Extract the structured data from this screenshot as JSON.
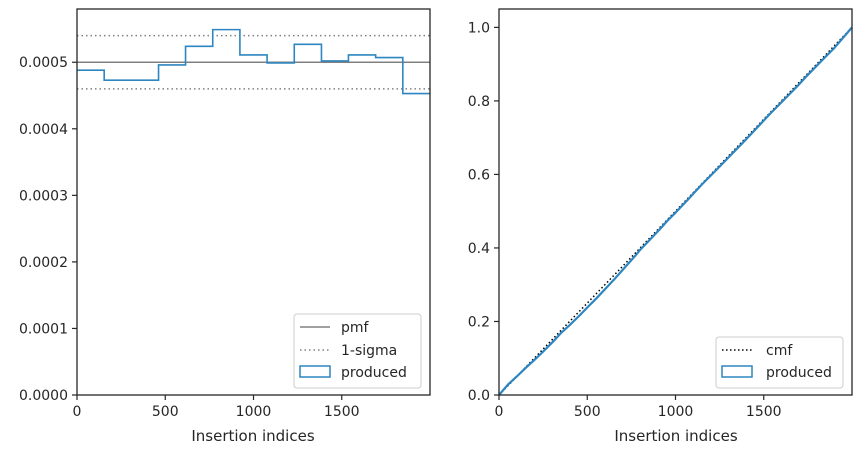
{
  "chart_data": [
    {
      "type": "histogram-step",
      "xlabel": "Insertion indices",
      "ylabel": "",
      "xlim": [
        0,
        2000
      ],
      "ylim": [
        0,
        0.00058
      ],
      "x_ticks": [
        0,
        500,
        1000,
        1500
      ],
      "y_ticks": [
        0.0,
        0.0001,
        0.0002,
        0.0003,
        0.0004,
        0.0005
      ],
      "y_tick_labels": [
        "0.0000",
        "0.0001",
        "0.0002",
        "0.0003",
        "0.0004",
        "0.0005"
      ],
      "pmf": 0.0005,
      "sigma_band": [
        0.00046,
        0.00054
      ],
      "bin_edges": [
        0,
        154,
        308,
        462,
        615,
        769,
        923,
        1077,
        1231,
        1385,
        1538,
        1692,
        1846,
        2000
      ],
      "produced": [
        0.000488,
        0.000473,
        0.000473,
        0.000496,
        0.000524,
        0.000549,
        0.000511,
        0.000499,
        0.000527,
        0.000502,
        0.000511,
        0.000507,
        0.000453
      ],
      "legend": [
        "pmf",
        "1-sigma",
        "produced"
      ],
      "legend_position": "lower-right",
      "colors": {
        "pmf": "#808080",
        "sigma": "#808080",
        "produced": "#2e86c1"
      }
    },
    {
      "type": "line",
      "xlabel": "Insertion indices",
      "ylabel": "",
      "xlim": [
        0,
        2000
      ],
      "ylim": [
        0,
        1.05
      ],
      "x_ticks": [
        0,
        500,
        1000,
        1500
      ],
      "y_ticks": [
        0.0,
        0.2,
        0.4,
        0.6,
        0.8,
        1.0
      ],
      "y_tick_labels": [
        "0.0",
        "0.2",
        "0.4",
        "0.6",
        "0.8",
        "1.0"
      ],
      "cmf": {
        "x": [
          0,
          2000
        ],
        "y": [
          0,
          1.0
        ]
      },
      "produced": {
        "x": [
          0,
          50,
          100,
          154,
          200,
          250,
          308,
          350,
          400,
          462,
          500,
          550,
          615,
          650,
          700,
          769,
          800,
          850,
          923,
          950,
          1000,
          1077,
          1100,
          1150,
          1231,
          1300,
          1385,
          1450,
          1538,
          1600,
          1692,
          1750,
          1846,
          1900,
          2000
        ],
        "y": [
          0,
          0.028,
          0.05,
          0.075,
          0.095,
          0.118,
          0.146,
          0.168,
          0.19,
          0.219,
          0.238,
          0.262,
          0.295,
          0.313,
          0.34,
          0.377,
          0.395,
          0.42,
          0.457,
          0.472,
          0.496,
          0.535,
          0.547,
          0.573,
          0.612,
          0.646,
          0.688,
          0.721,
          0.766,
          0.796,
          0.841,
          0.871,
          0.918,
          0.944,
          1.0
        ]
      },
      "legend": [
        "cmf",
        "produced"
      ],
      "legend_position": "lower-right",
      "colors": {
        "cmf": "#000000",
        "produced": "#2e86c1"
      }
    }
  ]
}
